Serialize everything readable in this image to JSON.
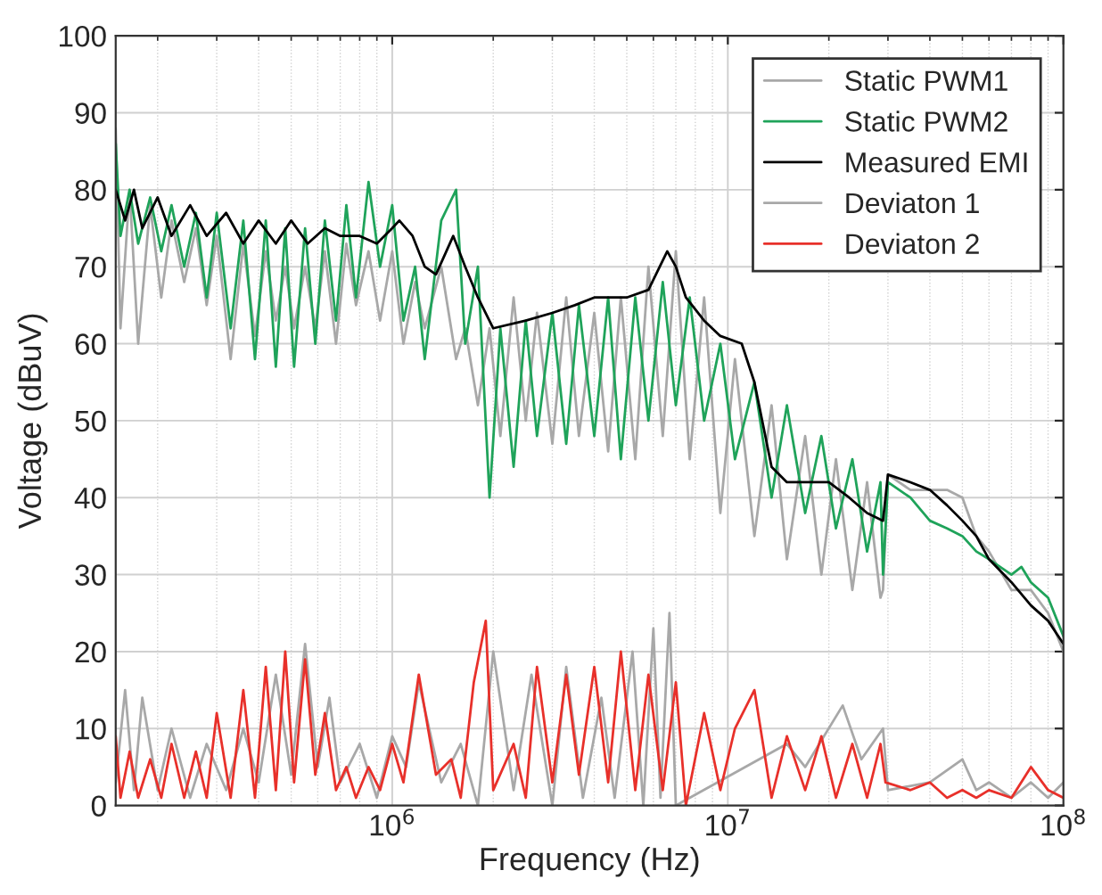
{
  "chart_data": {
    "type": "line",
    "xlabel": "Frequency (Hz)",
    "ylabel": "Voltage (dBuV)",
    "log": "x",
    "xlim": [
      150000,
      100000000
    ],
    "ylim": [
      0,
      100
    ],
    "xticks": [
      {
        "value": 1000000,
        "label": "10$^{6}$"
      },
      {
        "value": 10000000,
        "label": "10$^{7}$"
      },
      {
        "value": 100000000,
        "label": "10$^{8}$"
      }
    ],
    "yticks": [
      0,
      10,
      20,
      30,
      40,
      50,
      60,
      70,
      80,
      90,
      100
    ],
    "grid": true,
    "legend": "top right",
    "marker": "none",
    "line_style": "solid",
    "series": [
      {
        "name": "Static PWM1",
        "color": "#a8a8a8",
        "x": [
          150000,
          155000,
          165000,
          175000,
          190000,
          205000,
          220000,
          240000,
          260000,
          280000,
          300000,
          330000,
          360000,
          390000,
          420000,
          450000,
          480000,
          510000,
          550000,
          590000,
          630000,
          680000,
          730000,
          780000,
          850000,
          920000,
          1000000,
          1080000,
          1170000,
          1250000,
          1400000,
          1550000,
          1650000,
          1800000,
          1950000,
          2100000,
          2300000,
          2500000,
          2700000,
          3000000,
          3300000,
          3600000,
          4000000,
          4400000,
          4800000,
          5300000,
          5800000,
          6400000,
          7000000,
          7700000,
          8500000,
          9500000,
          10500000,
          12000000,
          13500000,
          15000000,
          17000000,
          19000000,
          21000000,
          23500000,
          26000000,
          28500000,
          29000000,
          30000000,
          35000000,
          40000000,
          45000000,
          50000000,
          55000000,
          60000000,
          70000000,
          80000000,
          90000000,
          100000000
        ],
        "values": [
          88,
          62,
          80,
          60,
          78,
          66,
          76,
          68,
          75,
          65,
          74,
          58,
          73,
          61,
          72,
          63,
          70,
          62,
          70,
          62,
          72,
          60,
          73,
          65,
          72,
          63,
          72,
          60,
          68,
          62,
          70,
          58,
          62,
          52,
          62,
          48,
          66,
          50,
          64,
          47,
          66,
          48,
          64,
          46,
          66,
          45,
          70,
          48,
          72,
          45,
          66,
          38,
          58,
          35,
          52,
          32,
          48,
          30,
          45,
          28,
          42,
          27,
          28,
          43,
          41,
          41,
          41,
          40,
          35,
          33,
          28,
          28,
          25,
          20
        ]
      },
      {
        "name": "Static PWM2",
        "color": "#1fa35a",
        "x": [
          150000,
          155000,
          165000,
          175000,
          190000,
          205000,
          220000,
          240000,
          260000,
          280000,
          300000,
          330000,
          360000,
          390000,
          420000,
          450000,
          480000,
          510000,
          550000,
          590000,
          630000,
          680000,
          730000,
          780000,
          850000,
          920000,
          1000000,
          1080000,
          1170000,
          1250000,
          1400000,
          1550000,
          1650000,
          1800000,
          1950000,
          2100000,
          2300000,
          2500000,
          2700000,
          3000000,
          3300000,
          3600000,
          4000000,
          4400000,
          4800000,
          5300000,
          5800000,
          6400000,
          7000000,
          7700000,
          8500000,
          9500000,
          10500000,
          12000000,
          13500000,
          15000000,
          17000000,
          19000000,
          21000000,
          23500000,
          26000000,
          28500000,
          29000000,
          30000000,
          35000000,
          40000000,
          45000000,
          50000000,
          55000000,
          60000000,
          70000000,
          75000000,
          80000000,
          90000000,
          100000000
        ],
        "values": [
          86,
          74,
          80,
          73,
          79,
          72,
          78,
          70,
          77,
          66,
          77,
          62,
          76,
          58,
          76,
          57,
          75,
          57,
          75,
          60,
          76,
          63,
          78,
          66,
          81,
          70,
          78,
          63,
          70,
          58,
          76,
          80,
          60,
          70,
          40,
          62,
          44,
          63,
          48,
          64,
          47,
          65,
          48,
          66,
          45,
          66,
          50,
          68,
          52,
          66,
          50,
          60,
          45,
          55,
          40,
          52,
          38,
          48,
          36,
          45,
          33,
          42,
          30,
          42,
          40,
          37,
          36,
          35,
          33,
          32,
          30,
          31,
          29,
          27,
          22
        ]
      },
      {
        "name": "Measured EMI",
        "color": "#000000",
        "x": [
          150000,
          160000,
          170000,
          180000,
          200000,
          220000,
          250000,
          280000,
          320000,
          360000,
          400000,
          450000,
          500000,
          560000,
          630000,
          700000,
          800000,
          900000,
          1000000,
          1050000,
          1150000,
          1250000,
          1350000,
          1450000,
          1520000,
          1650000,
          1800000,
          2000000,
          2500000,
          3000000,
          3500000,
          4000000,
          5000000,
          5800000,
          6600000,
          7000000,
          7500000,
          8500000,
          9500000,
          11000000,
          12000000,
          13500000,
          15000000,
          17000000,
          20000000,
          23000000,
          26000000,
          29000000,
          30000000,
          35000000,
          40000000,
          45000000,
          50000000,
          55000000,
          60000000,
          70000000,
          80000000,
          90000000,
          100000000
        ],
        "values": [
          80,
          76,
          80,
          75,
          79,
          74,
          78,
          74,
          77,
          73,
          76,
          73,
          76,
          73,
          75,
          74,
          74,
          73,
          75,
          76,
          74,
          70,
          69,
          72,
          74,
          70,
          66,
          62,
          63,
          64,
          65,
          66,
          66,
          67,
          72,
          70,
          66,
          63,
          61,
          60,
          55,
          44,
          42,
          42,
          42,
          40,
          38,
          37,
          43,
          42,
          41,
          39,
          37,
          35,
          32,
          29,
          26,
          24,
          21
        ]
      },
      {
        "name": "Deviaton 1",
        "color": "#a8a8a8",
        "x": [
          150000,
          160000,
          170000,
          180000,
          200000,
          220000,
          250000,
          280000,
          320000,
          360000,
          400000,
          450000,
          500000,
          550000,
          600000,
          650000,
          700000,
          800000,
          900000,
          1000000,
          1100000,
          1200000,
          1400000,
          1600000,
          1800000,
          2000000,
          2300000,
          2600000,
          3000000,
          3300000,
          3700000,
          4200000,
          4600000,
          5200000,
          5600000,
          6000000,
          6300000,
          6700000,
          7000000,
          15000000,
          17000000,
          22000000,
          25000000,
          29000000,
          30000000,
          40000000,
          50000000,
          55000000,
          60000000,
          70000000,
          80000000,
          90000000,
          100000000
        ],
        "values": [
          3,
          15,
          2,
          14,
          2,
          10,
          1,
          8,
          2,
          10,
          3,
          17,
          4,
          21,
          5,
          14,
          3,
          8,
          1,
          9,
          5,
          16,
          3,
          8,
          0,
          20,
          2,
          17,
          0,
          18,
          1,
          14,
          1,
          20,
          0,
          23,
          1,
          25,
          0,
          8,
          5,
          13,
          6,
          10,
          2,
          3,
          6,
          2,
          3,
          1,
          3,
          1,
          3
        ]
      },
      {
        "name": "Deviaton 2",
        "color": "#e8302a",
        "x": [
          150000,
          155000,
          165000,
          175000,
          190000,
          205000,
          220000,
          240000,
          260000,
          280000,
          300000,
          330000,
          360000,
          390000,
          420000,
          450000,
          480000,
          510000,
          550000,
          590000,
          630000,
          680000,
          730000,
          780000,
          850000,
          920000,
          1000000,
          1080000,
          1200000,
          1350000,
          1500000,
          1600000,
          1750000,
          1900000,
          2000000,
          2300000,
          2500000,
          2700000,
          3000000,
          3300000,
          3600000,
          4000000,
          4400000,
          4800000,
          5300000,
          5800000,
          6400000,
          7000000,
          7500000,
          8500000,
          9500000,
          10500000,
          12000000,
          13500000,
          15000000,
          17000000,
          19000000,
          21000000,
          23500000,
          26000000,
          28500000,
          29500000,
          35000000,
          40000000,
          45000000,
          50000000,
          55000000,
          60000000,
          70000000,
          80000000,
          90000000,
          100000000
        ],
        "values": [
          9,
          1,
          7,
          1,
          6,
          1,
          8,
          1,
          7,
          1,
          12,
          1,
          15,
          1,
          18,
          2,
          20,
          3,
          19,
          4,
          12,
          2,
          5,
          1,
          5,
          2,
          8,
          3,
          17,
          4,
          6,
          1,
          16,
          24,
          2,
          8,
          1,
          18,
          3,
          17,
          4,
          18,
          3,
          20,
          2,
          17,
          2,
          16,
          0,
          12,
          2,
          10,
          15,
          1,
          9,
          2,
          9,
          1,
          8,
          1,
          8,
          3,
          2,
          3,
          1,
          2,
          1,
          2,
          1,
          5,
          2,
          1
        ]
      }
    ]
  }
}
